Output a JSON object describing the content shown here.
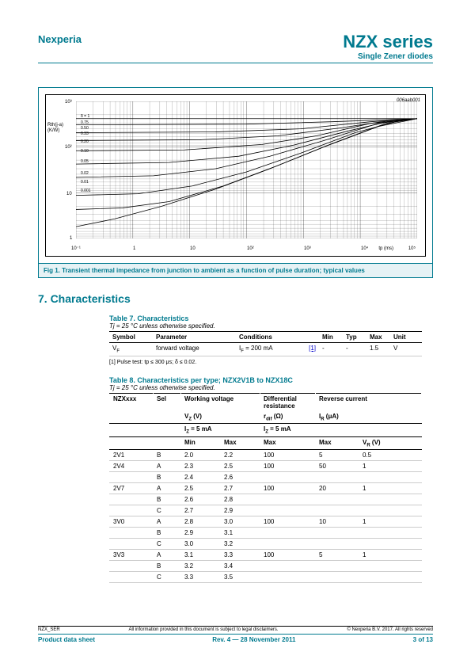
{
  "header": {
    "company": "Nexperia",
    "product": "NZX series",
    "subtitle": "Single Zener diodes"
  },
  "figure": {
    "code": "006aab001",
    "ylabel1": "Rth(j-a)",
    "ylabel2": "(K/W)",
    "yticks": [
      "10³",
      "10²",
      "10",
      "1"
    ],
    "xticks": [
      "10⁻¹",
      "1",
      "10",
      "10²",
      "10³",
      "10⁴",
      "10⁵"
    ],
    "xlabel": "tp (ms)",
    "curve_labels": [
      "δ = 1",
      "0.75",
      "0.50",
      "0.33",
      "0.20",
      "0.10",
      "0.05",
      "0.02",
      "0.01",
      "0.001"
    ],
    "caption": "Fig 1.    Transient thermal impedance from junction to ambient as a function of pulse duration; typical values",
    "line_color": "#000000",
    "grid_color": "#000000",
    "background_color": "#ffffff"
  },
  "section7": {
    "heading": "7.   Characteristics",
    "table7": {
      "title": "Table 7.    Characteristics",
      "condition": "Tj = 25 °C unless otherwise specified.",
      "headers": [
        "Symbol",
        "Parameter",
        "Conditions",
        "",
        "Min",
        "Typ",
        "Max",
        "Unit"
      ],
      "row": {
        "symbol": "VF",
        "param": "forward voltage",
        "cond": "IF = 200 mA",
        "ref": "[1]",
        "min": "-",
        "typ": "-",
        "max": "1.5",
        "unit": "V"
      },
      "footnote": "[1]   Pulse test: tp ≤ 300 μs; δ ≤ 0.02."
    },
    "table8": {
      "title": "Table 8.    Characteristics per type; NZX2V1B to NZX18C",
      "condition": "Tj = 25 °C unless otherwise specified.",
      "h1": {
        "c1": "NZXxxx",
        "c2": "Sel",
        "c3": "Working voltage",
        "c4": "Differential resistance",
        "c5": "Reverse current"
      },
      "h1b": {
        "c3": "VZ (V)",
        "c4": "rdif (Ω)",
        "c5": "IR (μA)"
      },
      "h2": {
        "c3": "IZ = 5 mA",
        "c4": "IZ = 5 mA"
      },
      "h3": {
        "min": "Min",
        "max": "Max",
        "rmax": "Max",
        "imax": "Max",
        "vr": "VR (V)"
      },
      "rows": [
        {
          "nzx": "2V1",
          "sel": "B",
          "vmin": "2.0",
          "vmax": "2.2",
          "rdif": "100",
          "ir": "5",
          "vr": "0.5"
        },
        {
          "nzx": "2V4",
          "sel": "A",
          "vmin": "2.3",
          "vmax": "2.5",
          "rdif": "100",
          "ir": "50",
          "vr": "1"
        },
        {
          "nzx": "",
          "sel": "B",
          "vmin": "2.4",
          "vmax": "2.6",
          "rdif": "",
          "ir": "",
          "vr": ""
        },
        {
          "nzx": "2V7",
          "sel": "A",
          "vmin": "2.5",
          "vmax": "2.7",
          "rdif": "100",
          "ir": "20",
          "vr": "1"
        },
        {
          "nzx": "",
          "sel": "B",
          "vmin": "2.6",
          "vmax": "2.8",
          "rdif": "",
          "ir": "",
          "vr": ""
        },
        {
          "nzx": "",
          "sel": "C",
          "vmin": "2.7",
          "vmax": "2.9",
          "rdif": "",
          "ir": "",
          "vr": ""
        },
        {
          "nzx": "3V0",
          "sel": "A",
          "vmin": "2.8",
          "vmax": "3.0",
          "rdif": "100",
          "ir": "10",
          "vr": "1"
        },
        {
          "nzx": "",
          "sel": "B",
          "vmin": "2.9",
          "vmax": "3.1",
          "rdif": "",
          "ir": "",
          "vr": ""
        },
        {
          "nzx": "",
          "sel": "C",
          "vmin": "3.0",
          "vmax": "3.2",
          "rdif": "",
          "ir": "",
          "vr": ""
        },
        {
          "nzx": "3V3",
          "sel": "A",
          "vmin": "3.1",
          "vmax": "3.3",
          "rdif": "100",
          "ir": "5",
          "vr": "1"
        },
        {
          "nzx": "",
          "sel": "B",
          "vmin": "3.2",
          "vmax": "3.4",
          "rdif": "",
          "ir": "",
          "vr": ""
        },
        {
          "nzx": "",
          "sel": "C",
          "vmin": "3.3",
          "vmax": "3.5",
          "rdif": "",
          "ir": "",
          "vr": ""
        }
      ]
    }
  },
  "footer": {
    "doc_id": "NZX_SER",
    "disclaimer": "All information provided in this document is subject to legal disclaimers.",
    "copyright": "© Nexperia B.V. 2017. All rights reserved",
    "left": "Product data sheet",
    "center": "Rev. 4 — 28 November 2011",
    "right": "3 of 13"
  }
}
